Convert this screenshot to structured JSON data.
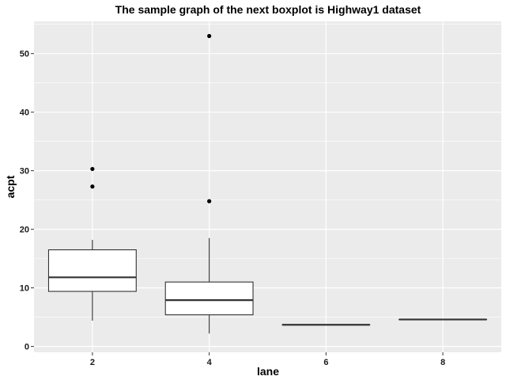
{
  "chart_data": {
    "type": "boxplot",
    "title": "The sample graph of the next boxplot is Highway1 dataset",
    "xlabel": "lane",
    "ylabel": "acpt",
    "categories": [
      "2",
      "4",
      "6",
      "8"
    ],
    "ylim": [
      -1,
      55.5
    ],
    "yticks": [
      0,
      10,
      20,
      30,
      40,
      50
    ],
    "grid": true,
    "boxes": [
      {
        "category": "2",
        "whisker_low": 4.4,
        "q1": 9.4,
        "median": 11.8,
        "q3": 16.5,
        "whisker_high": 18.2,
        "outliers": [
          27.3,
          30.3
        ]
      },
      {
        "category": "4",
        "whisker_low": 2.2,
        "q1": 5.4,
        "median": 7.9,
        "q3": 11.0,
        "whisker_high": 18.5,
        "outliers": [
          24.8,
          53.0
        ]
      },
      {
        "category": "6",
        "whisker_low": 3.7,
        "q1": 3.7,
        "median": 3.7,
        "q3": 3.7,
        "whisker_high": 3.7,
        "outliers": []
      },
      {
        "category": "8",
        "whisker_low": 4.6,
        "q1": 4.6,
        "median": 4.6,
        "q3": 4.6,
        "whisker_high": 4.6,
        "outliers": []
      }
    ],
    "colors": {
      "panel": "#ebebeb",
      "grid": "#ffffff",
      "box_fill": "#ffffff",
      "box_line": "#333333",
      "outlier": "#000000"
    }
  }
}
